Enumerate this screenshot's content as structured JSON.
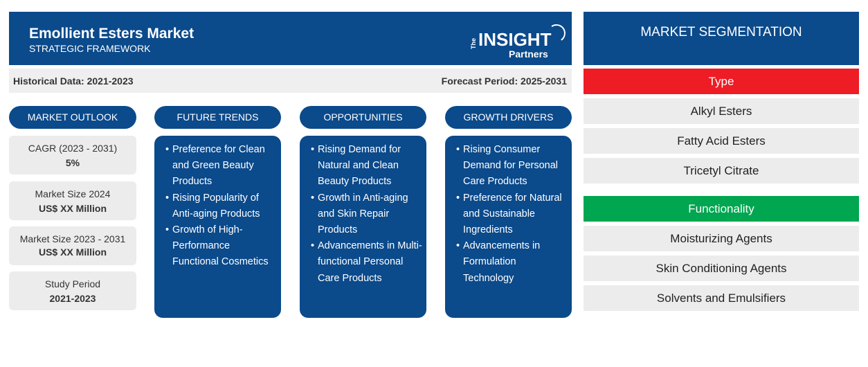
{
  "header": {
    "title": "Emollient Esters Market",
    "subtitle": "STRATEGIC FRAMEWORK",
    "logo": {
      "the": "The",
      "insight": "INSIGHT",
      "partners": "Partners"
    }
  },
  "periods": {
    "historical": "Historical Data: 2021-2023",
    "forecast": "Forecast Period: 2025-2031"
  },
  "columns": [
    {
      "title": "MARKET OUTLOOK"
    },
    {
      "title": "FUTURE TRENDS",
      "items": [
        "Preference for Clean and Green Beauty Products",
        "Rising Popularity of Anti-aging Products",
        "Growth of High-Performance Functional Cosmetics"
      ]
    },
    {
      "title": "OPPORTUNITIES",
      "items": [
        "Rising Demand for Natural and Clean Beauty Products",
        "Growth in Anti-aging and Skin Repair Products",
        "Advancements in Multi-functional Personal Care Products"
      ]
    },
    {
      "title": "GROWTH DRIVERS",
      "items": [
        "Rising Consumer Demand for Personal Care Products",
        "Preference for Natural and Sustainable Ingredients",
        "Advancements in Formulation Technology"
      ]
    }
  ],
  "outlook": [
    {
      "label": "CAGR (2023 - 2031)",
      "value": "5%"
    },
    {
      "label": "Market Size 2024",
      "value": "US$ XX Million"
    },
    {
      "label": "Market Size 2023 - 2031",
      "value": "US$ XX Million"
    },
    {
      "label": "Study Period",
      "value": "2021-2023"
    }
  ],
  "segmentation": {
    "title": "MARKET SEGMENTATION",
    "type": {
      "label": "Type",
      "color": "#ee1c25",
      "items": [
        "Alkyl Esters",
        "Fatty Acid Esters",
        "Tricetyl Citrate"
      ]
    },
    "functionality": {
      "label": "Functionality",
      "color": "#00a650",
      "items": [
        "Moisturizing Agents",
        "Skin Conditioning Agents",
        "Solvents and Emulsifiers"
      ]
    }
  },
  "colors": {
    "primary": "#0b4a8b",
    "panel": "#ececec"
  }
}
